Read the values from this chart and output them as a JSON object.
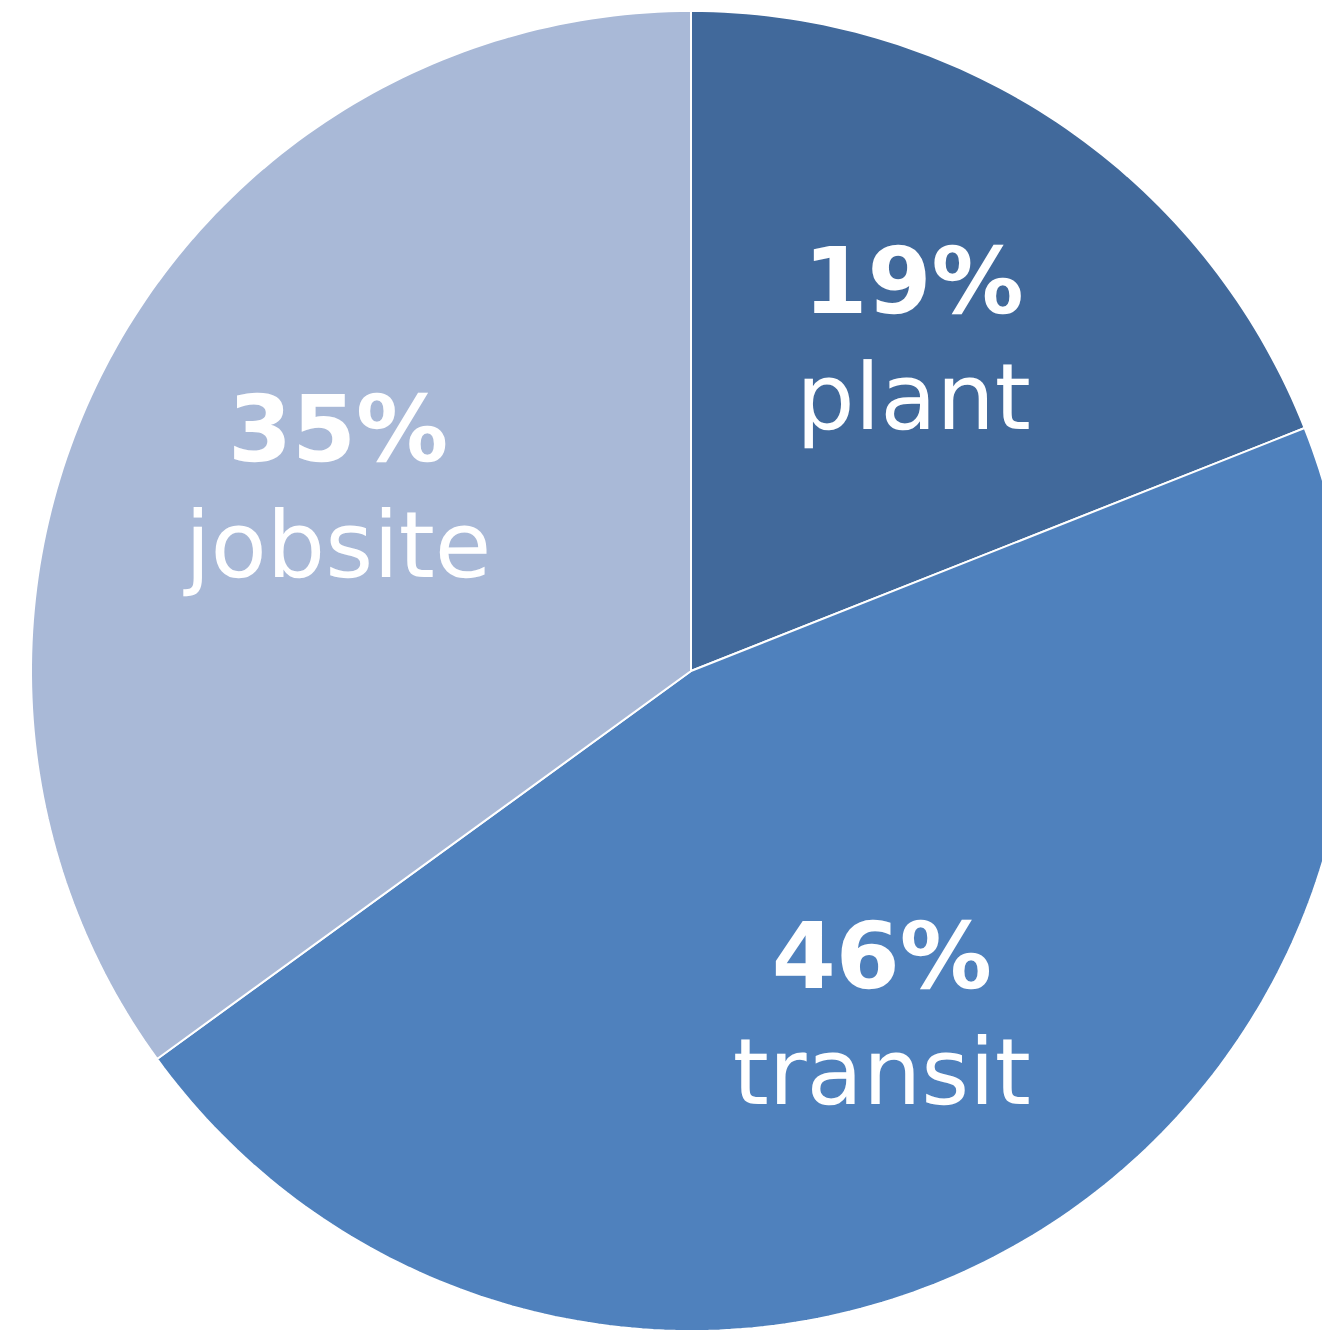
{
  "chart_data": {
    "type": "pie",
    "categories": [
      "plant",
      "transit",
      "jobsite"
    ],
    "values": [
      19,
      46,
      35
    ],
    "value_labels": [
      "19%",
      "46%",
      "35%"
    ],
    "colors": [
      "#41699b",
      "#4f81bd",
      "#a9b9d7"
    ]
  }
}
